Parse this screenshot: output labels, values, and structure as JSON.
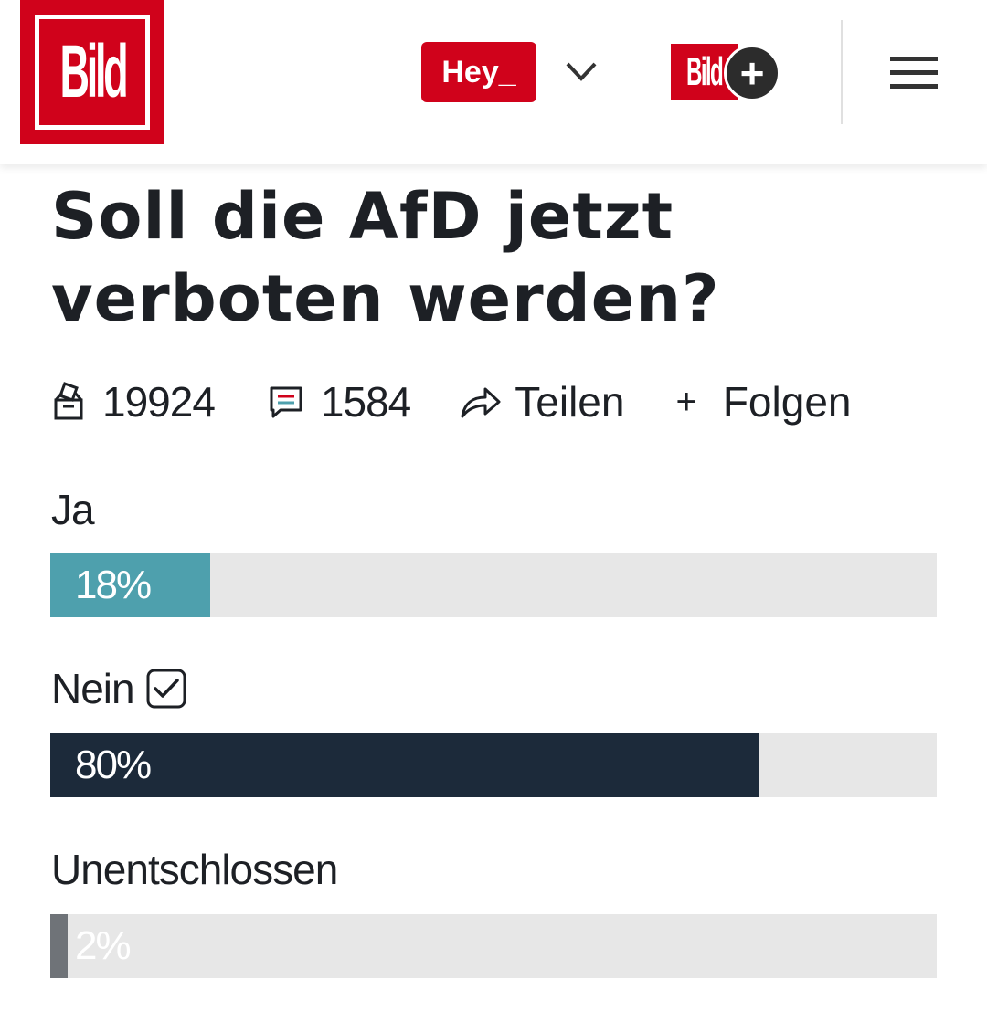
{
  "header": {
    "logo_text": "Bild",
    "hey_label": "Hey_",
    "bildplus_text": "Bild",
    "bildplus_sign": "+"
  },
  "article": {
    "title": "Soll die AfD jetzt verboten werden?",
    "votes": "19924",
    "comments": "1584",
    "share_label": "Teilen",
    "follow_plus": "+",
    "follow_label": "Folgen"
  },
  "poll": {
    "options": [
      {
        "label": "Ja",
        "percent_label": "18%",
        "fraction": 0.18,
        "color": "#4ea0ad",
        "text_color": "#ffffff",
        "selected": false
      },
      {
        "label": "Nein",
        "percent_label": "80%",
        "fraction": 0.8,
        "color": "#1c2a3a",
        "text_color": "#ffffff",
        "selected": true
      },
      {
        "label": "Unentschlossen",
        "percent_label": "2%",
        "fraction": 0.02,
        "color": "#6f7378",
        "text_color": "#ffffff",
        "selected": false
      }
    ]
  },
  "colors": {
    "brand_red": "#d0021b",
    "track": "#e7e7e7",
    "text": "#1d2025"
  },
  "icons": [
    "ballot-box-icon",
    "comment-icon",
    "share-icon",
    "chevron-down-icon",
    "menu-icon",
    "checkbox-checked-icon"
  ]
}
